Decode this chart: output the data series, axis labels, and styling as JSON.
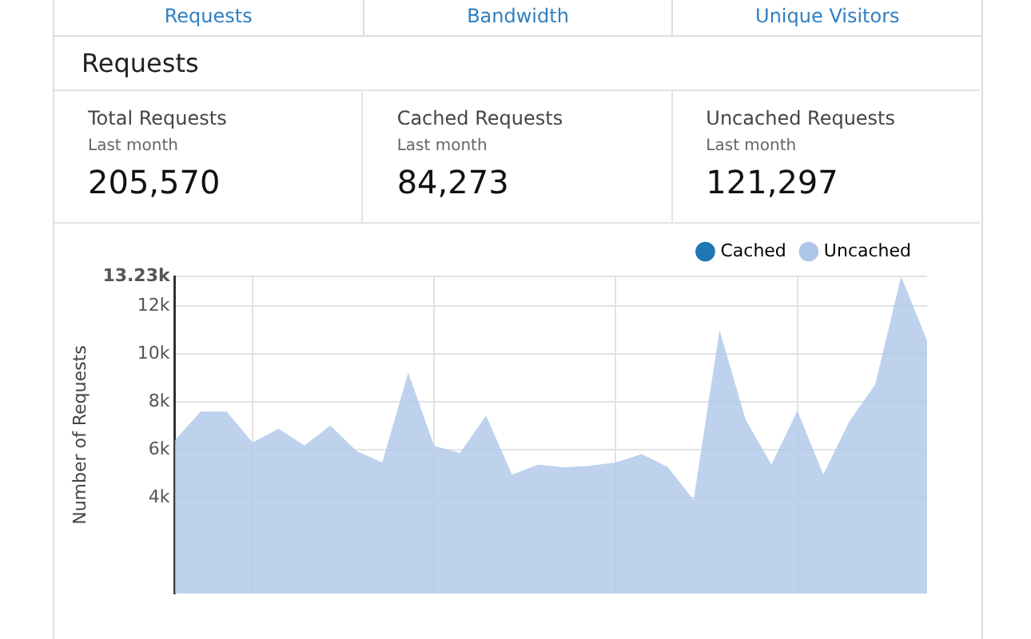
{
  "chart_data": {
    "type": "area",
    "title": "Requests",
    "ylabel": "Number of Requests",
    "annotations": [
      "Requests",
      "Bandwidth",
      "Unique Visitors",
      "Total Requests",
      "Last month",
      "205,570",
      "Cached Requests",
      "Last month",
      "84,273",
      "Uncached Requests",
      "Last month",
      "121,297"
    ],
    "categories": [
      null,
      null,
      null,
      null,
      null,
      null,
      null,
      null,
      null,
      null,
      null,
      null,
      null,
      null,
      null,
      null,
      null,
      null,
      null,
      null,
      null,
      null,
      null,
      null,
      null,
      null,
      null,
      null,
      null,
      null
    ],
    "series": [
      {
        "name": "Cached",
        "color": "#1f77b4",
        "values": [
          null,
          null,
          null,
          null,
          null,
          null,
          null,
          null,
          null,
          null,
          null,
          null,
          null,
          null,
          null,
          null,
          null,
          null,
          null,
          null,
          null,
          null,
          null,
          null,
          null,
          null,
          null,
          null,
          null,
          null
        ]
      },
      {
        "name": "Uncached",
        "color": "#aec7e8",
        "values": [
          6390,
          7590,
          7590,
          6300,
          6880,
          6180,
          7010,
          5950,
          5470,
          9220,
          6160,
          5870,
          7430,
          4960,
          5380,
          5270,
          5330,
          5470,
          5820,
          5290,
          3910,
          10990,
          7270,
          5380,
          7630,
          4970,
          7180,
          8720,
          13230,
          10540
        ]
      }
    ],
    "ylim": [
      0,
      13230
    ],
    "yticks": [
      {
        "value": 4000,
        "label": "4k"
      },
      {
        "value": 6000,
        "label": "6k"
      },
      {
        "value": 8000,
        "label": "8k"
      },
      {
        "value": 10000,
        "label": "10k"
      },
      {
        "value": 12000,
        "label": "12k"
      },
      {
        "value": 13230,
        "label": "13.23k"
      }
    ],
    "grid": true,
    "legend": "top right"
  }
}
